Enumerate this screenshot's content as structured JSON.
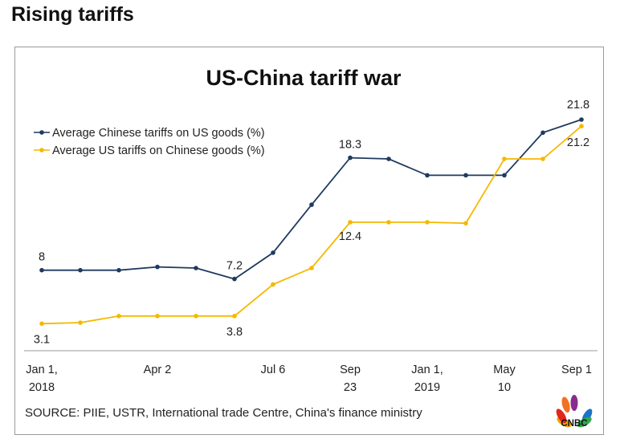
{
  "page": {
    "headline": "Rising tariffs",
    "source": "SOURCE: PIIE, USTR, International trade Centre, China's finance ministry",
    "logo_text": "CNBC"
  },
  "colors": {
    "chinese_series": "#1f3a5f",
    "us_series": "#f5b800",
    "axis": "#999999",
    "text": "#222222"
  },
  "chart_data": {
    "type": "line",
    "title": "US-China tariff war",
    "xlabel": "",
    "ylabel": "",
    "ylim": [
      0,
      25
    ],
    "grid": false,
    "legend": "top-left",
    "x_ticks": [
      {
        "lines": [
          "Jan 1,",
          "2018"
        ],
        "at": 0
      },
      {
        "lines": [
          "Apr 2"
        ],
        "at": 3
      },
      {
        "lines": [
          "Jul 6"
        ],
        "at": 6
      },
      {
        "lines": [
          "Sep",
          "23"
        ],
        "at": 8
      },
      {
        "lines": [
          "Jan 1,",
          "2019"
        ],
        "at": 10
      },
      {
        "lines": [
          "May",
          "10"
        ],
        "at": 12
      },
      {
        "lines": [
          "Sep 1"
        ],
        "at": 14
      }
    ],
    "series": [
      {
        "name": "Average Chinese tariffs on US goods (%)",
        "values": [
          8.0,
          8.0,
          8.0,
          8.3,
          8.2,
          7.2,
          9.6,
          14.0,
          18.3,
          18.2,
          16.7,
          16.7,
          16.7,
          20.6,
          21.8
        ],
        "data_labels": [
          {
            "i": 0,
            "text": "8"
          },
          {
            "i": 5,
            "text": "7.2"
          },
          {
            "i": 8,
            "text": "18.3"
          },
          {
            "i": 14,
            "text": "21.8"
          }
        ]
      },
      {
        "name": "Average US tariffs on Chinese goods (%)",
        "values": [
          3.1,
          3.2,
          3.8,
          3.8,
          3.8,
          3.8,
          6.7,
          8.2,
          12.4,
          12.4,
          12.4,
          12.3,
          18.2,
          18.2,
          21.2
        ],
        "data_labels": [
          {
            "i": 0,
            "text": "3.1"
          },
          {
            "i": 5,
            "text": "3.8"
          },
          {
            "i": 8,
            "text": "12.4"
          },
          {
            "i": 14,
            "text": "21.2"
          }
        ]
      }
    ]
  }
}
